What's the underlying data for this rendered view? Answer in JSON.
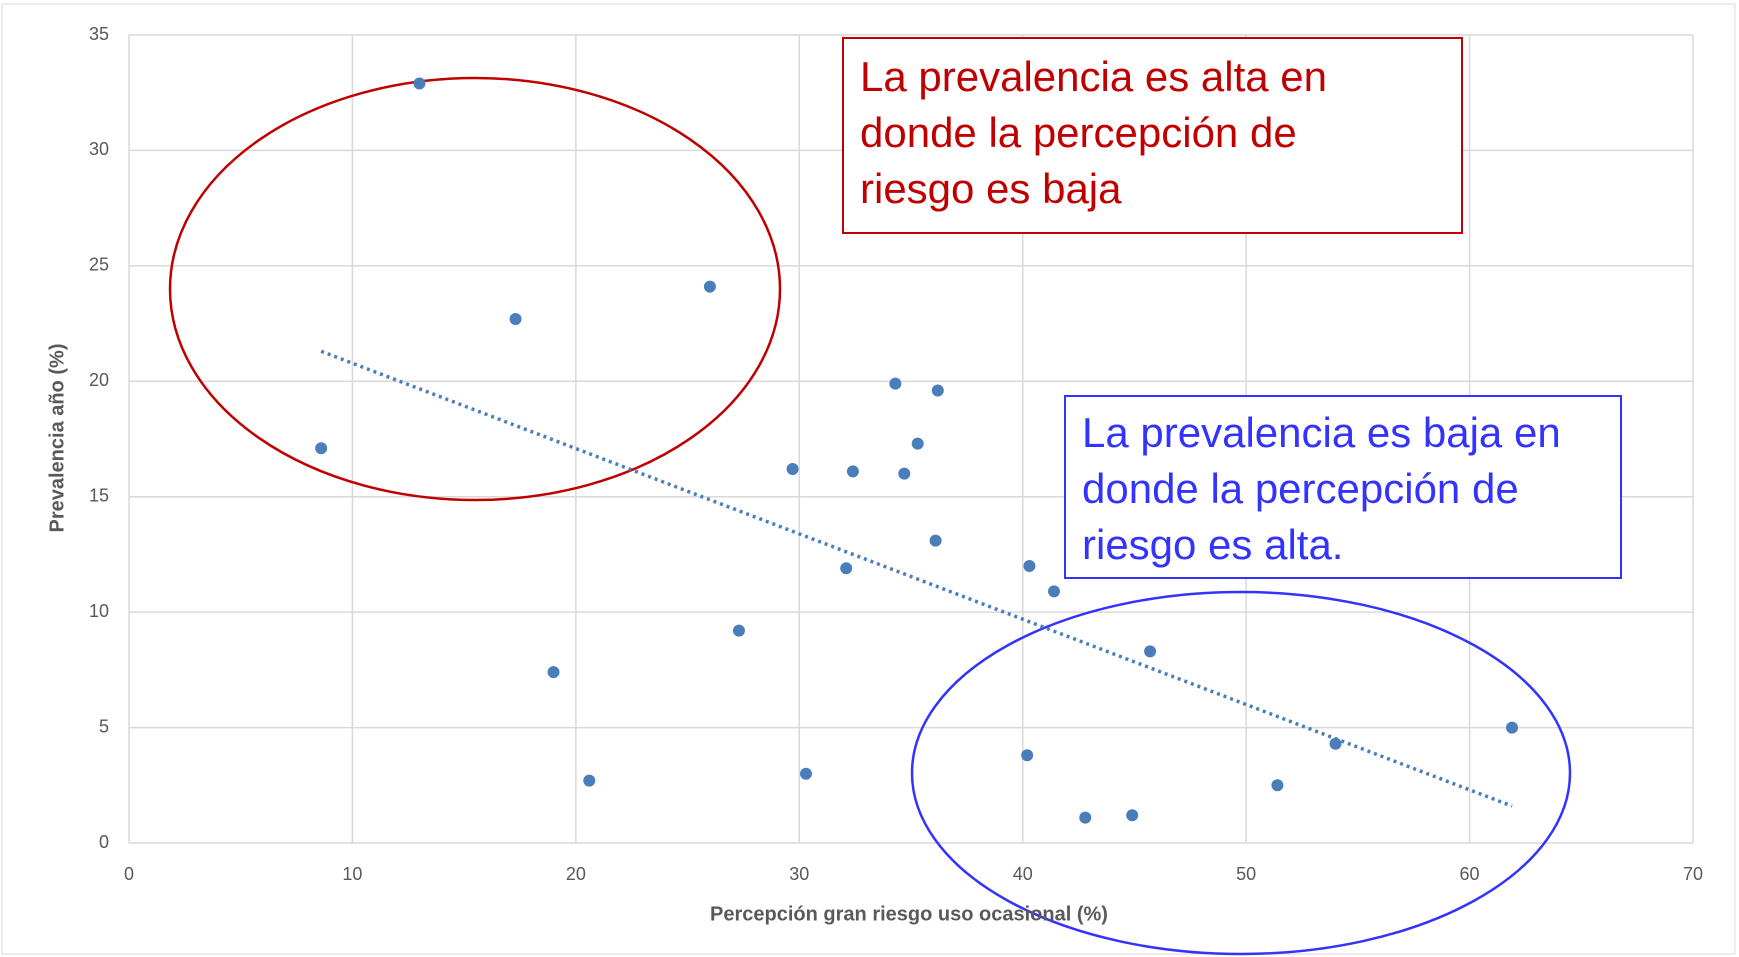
{
  "chart_data": {
    "type": "scatter",
    "xlabel": "Percepción gran riesgo uso ocasional (%)",
    "ylabel": "Prevalencia año (%)",
    "x": [
      8.6,
      13.0,
      17.3,
      26.0,
      19.0,
      20.6,
      27.3,
      29.7,
      30.3,
      32.1,
      32.4,
      34.3,
      34.7,
      35.3,
      36.1,
      36.2,
      40.3,
      40.2,
      41.4,
      42.8,
      44.9,
      45.7,
      51.4,
      54.0,
      61.9
    ],
    "values": [
      17.1,
      32.9,
      22.7,
      24.1,
      7.4,
      2.7,
      9.2,
      16.2,
      3.0,
      11.9,
      16.1,
      19.9,
      16.0,
      17.3,
      13.1,
      19.6,
      12.0,
      3.8,
      10.9,
      1.1,
      1.2,
      8.3,
      2.5,
      4.3,
      5.0
    ],
    "color": "#4a7ebb",
    "trendline": {
      "x": [
        8.6,
        61.9
      ],
      "values": [
        21.3,
        1.6
      ],
      "color": "#4a7ebb"
    },
    "xlim": [
      0,
      70
    ],
    "xticks": [
      0,
      10,
      20,
      30,
      40,
      50,
      60,
      70
    ],
    "ylim": [
      0,
      35
    ],
    "yticks": [
      0,
      5,
      10,
      15,
      20,
      25,
      30,
      35
    ],
    "grid": true,
    "annotations": [
      {
        "lines": [
          "La prevalencia es alta en",
          "donde la percepción de",
          "riesgo es baja"
        ],
        "color": "#c00000"
      },
      {
        "lines": [
          "La prevalencia es baja en",
          "donde la percepción de",
          "riesgo es alta."
        ],
        "color": "#3333ff"
      }
    ]
  }
}
